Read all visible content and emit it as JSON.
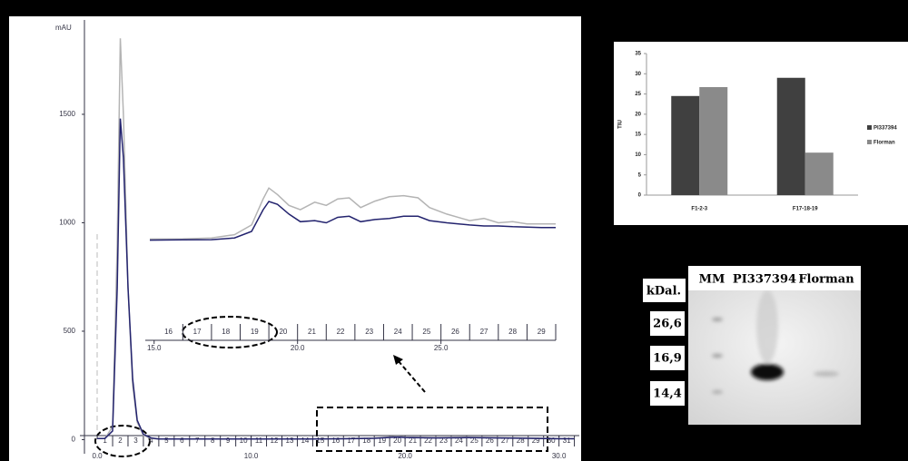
{
  "chart_data": [
    {
      "type": "line",
      "ylabel": "mAU",
      "x": [
        0,
        0.5,
        1.0,
        1.3,
        1.5,
        1.7,
        2.0,
        2.3,
        2.6,
        3.0,
        3.5,
        4,
        6,
        8,
        10,
        12,
        14,
        16,
        18,
        19.5,
        20,
        22,
        24,
        26,
        28,
        30,
        31
      ],
      "series": [
        {
          "color": "#b4b4b4",
          "values": [
            5,
            5,
            60,
            900,
            1850,
            1500,
            700,
            250,
            80,
            20,
            5,
            3,
            3,
            3,
            3,
            3,
            3,
            5,
            8,
            15,
            12,
            10,
            12,
            10,
            8,
            5,
            5
          ]
        },
        {
          "color": "#23236e",
          "values": [
            5,
            5,
            40,
            700,
            1480,
            1300,
            700,
            280,
            90,
            25,
            8,
            3,
            3,
            3,
            3,
            3,
            3,
            4,
            6,
            12,
            10,
            8,
            9,
            8,
            6,
            4,
            4
          ]
        }
      ],
      "xlim": [
        -0.83,
        31.32
      ],
      "ylim": [
        -65,
        1935
      ],
      "xticks": [
        {
          "value": 0,
          "label": "0.0"
        },
        {
          "value": 10,
          "label": "10.0"
        },
        {
          "value": 20,
          "label": "20.0"
        },
        {
          "value": 30,
          "label": "30.0"
        }
      ],
      "yticks": [
        0,
        500,
        1000,
        1500
      ],
      "fractions": [
        "1",
        "2",
        "3",
        "4",
        "5",
        "6",
        "7",
        "8",
        "9",
        "10",
        "11",
        "12",
        "13",
        "14",
        "15",
        "16",
        "17",
        "18",
        "19",
        "20",
        "21",
        "22",
        "23",
        "24",
        "25",
        "26",
        "27",
        "28",
        "29",
        "30",
        "31"
      ]
    },
    {
      "type": "line",
      "x": [
        14.85,
        16,
        17,
        17.8,
        18.4,
        18.8,
        19.0,
        19.3,
        19.7,
        20.1,
        20.6,
        21.0,
        21.4,
        21.8,
        22.2,
        22.7,
        23.2,
        23.7,
        24.2,
        24.6,
        25.2,
        26,
        26.5,
        27,
        27.5,
        28,
        28.5,
        29
      ],
      "series": [
        {
          "color": "#b4b4b4",
          "values": [
            925,
            926,
            930,
            945,
            990,
            1110,
            1160,
            1130,
            1080,
            1060,
            1095,
            1080,
            1110,
            1115,
            1070,
            1100,
            1120,
            1125,
            1115,
            1070,
            1040,
            1010,
            1020,
            1000,
            1005,
            995,
            995,
            995
          ]
        },
        {
          "color": "#23236e",
          "values": [
            920,
            921,
            922,
            930,
            960,
            1060,
            1098,
            1085,
            1040,
            1005,
            1010,
            1000,
            1025,
            1030,
            1005,
            1015,
            1020,
            1030,
            1030,
            1010,
            1000,
            990,
            985,
            985,
            982,
            980,
            978,
            978
          ]
        }
      ],
      "xlim": [
        14.85,
        29.0
      ],
      "ylim": [
        -65,
        1935
      ],
      "xticks": [
        {
          "value": 15,
          "label": "15.0"
        },
        {
          "value": 20,
          "label": "20.0"
        },
        {
          "value": 25,
          "label": "25.0"
        }
      ],
      "fractions": [
        "16",
        "17",
        "18",
        "19",
        "20",
        "21",
        "22",
        "23",
        "24",
        "25",
        "26",
        "27",
        "28",
        "29"
      ]
    },
    {
      "type": "bar",
      "ylabel": "TIU",
      "categories": [
        "F1-2-3",
        "F17-18-19"
      ],
      "series": [
        {
          "name": "PI337394",
          "color": "#404040",
          "values": [
            24.5,
            29
          ]
        },
        {
          "name": "Florman",
          "color": "#8a8a8a",
          "values": [
            26.7,
            10.5
          ]
        }
      ],
      "ylim": [
        0,
        35
      ],
      "yticks": [
        0,
        5,
        10,
        15,
        20,
        25,
        30,
        35
      ],
      "legend": "right"
    }
  ],
  "gel": {
    "lanes": [
      "MM",
      "PI337394",
      "Florman"
    ],
    "unit": "kDal.",
    "markers": [
      "26,6",
      "16,9",
      "14,4"
    ]
  }
}
